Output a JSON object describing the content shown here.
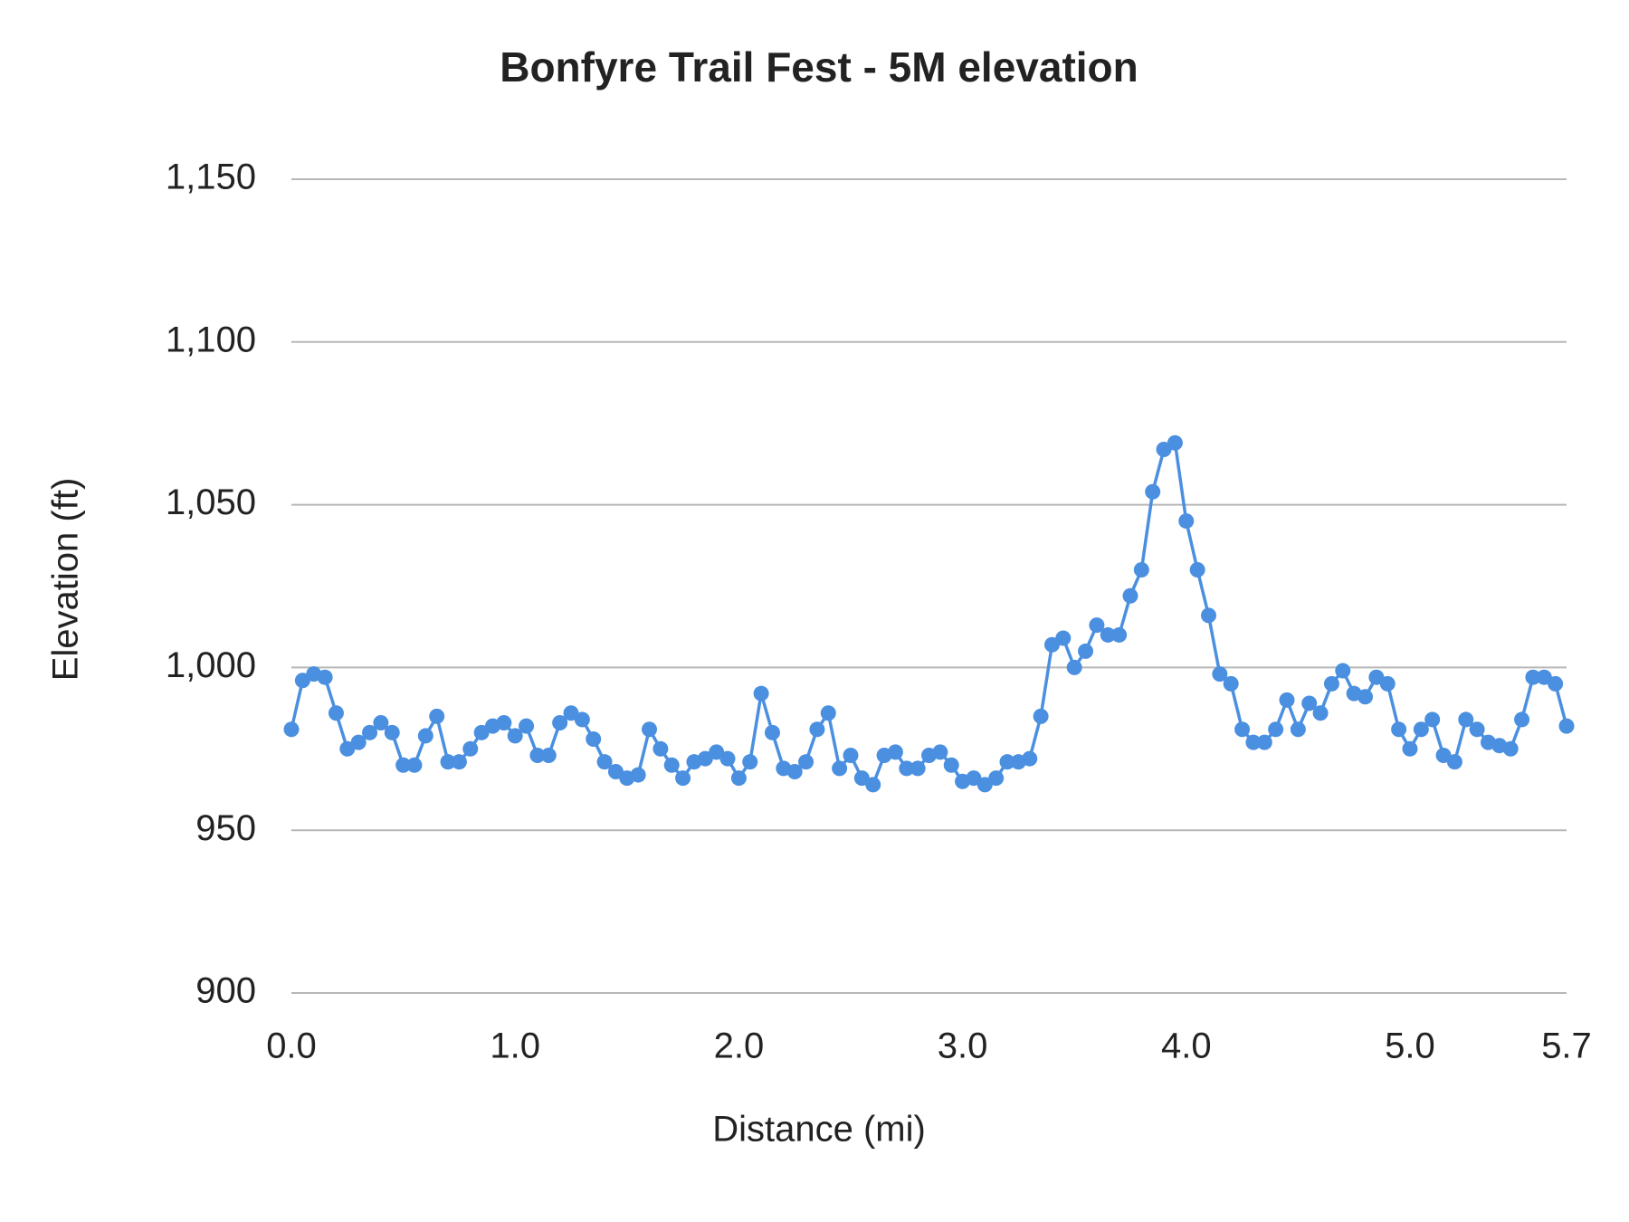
{
  "chart_data": {
    "type": "line",
    "title": "Bonfyre Trail Fest - 5M elevation",
    "x_label": "Distance (mi)",
    "y_label": "Elevation (ft)",
    "xlim": [
      0,
      5.7
    ],
    "xticks": [
      {
        "value": 0,
        "label": "0.0"
      },
      {
        "value": 1,
        "label": "1.0"
      },
      {
        "value": 2,
        "label": "2.0"
      },
      {
        "value": 3,
        "label": "3.0"
      },
      {
        "value": 4,
        "label": "4.0"
      },
      {
        "value": 5,
        "label": "5.0"
      },
      5.7
    ],
    "ylim": [
      900,
      1150
    ],
    "yticks": [
      900,
      950,
      {
        "value": 1000,
        "label": "1,000"
      },
      {
        "value": 1050,
        "label": "1,050"
      },
      {
        "value": 1100,
        "label": "1,100"
      },
      {
        "value": 1150,
        "label": "1,150"
      }
    ],
    "grid": true,
    "x": [
      0,
      0.05,
      0.1,
      0.15,
      0.2,
      0.25,
      0.3,
      0.35,
      0.4,
      0.45,
      0.5,
      0.55,
      0.6,
      0.65,
      0.7,
      0.75,
      0.8,
      0.85,
      0.9,
      0.95,
      1,
      1.05,
      1.1,
      1.15,
      1.2,
      1.25,
      1.3,
      1.35,
      1.4,
      1.45,
      1.5,
      1.55,
      1.6,
      1.65,
      1.7,
      1.75,
      1.8,
      1.85,
      1.9,
      1.95,
      2,
      2.05,
      2.1,
      2.15,
      2.2,
      2.25,
      2.3,
      2.35,
      2.4,
      2.45,
      2.5,
      2.55,
      2.6,
      2.65,
      2.7,
      2.75,
      2.8,
      2.85,
      2.9,
      2.95,
      3,
      3.05,
      3.1,
      3.15,
      3.2,
      3.25,
      3.3,
      3.35,
      3.4,
      3.45,
      3.5,
      3.55,
      3.6,
      3.65,
      3.7,
      3.75,
      3.8,
      3.85,
      3.9,
      3.95,
      4,
      4.05,
      4.1,
      4.15,
      4.2,
      4.25,
      4.3,
      4.35,
      4.4,
      4.45,
      4.5,
      4.55,
      4.6,
      4.65,
      4.7,
      4.75,
      4.8,
      4.85,
      4.9,
      4.95,
      5,
      5.05,
      5.1,
      5.15,
      5.2,
      5.25,
      5.3,
      5.35,
      5.4,
      5.45,
      5.5,
      5.55,
      5.6,
      5.65,
      5.7
    ],
    "series": [
      {
        "name": "Elevation",
        "color": "#4a8fe0",
        "values": [
          981,
          996,
          998,
          997,
          986,
          975,
          977,
          980,
          983,
          980,
          970,
          970,
          979,
          985,
          971,
          971,
          975,
          980,
          982,
          983,
          979,
          982,
          973,
          973,
          983,
          986,
          984,
          978,
          971,
          968,
          966,
          967,
          981,
          975,
          970,
          966,
          971,
          972,
          974,
          972,
          966,
          971,
          992,
          980,
          969,
          968,
          971,
          981,
          986,
          969,
          973,
          966,
          964,
          973,
          974,
          969,
          969,
          973,
          974,
          970,
          965,
          966,
          964,
          966,
          971,
          971,
          972,
          985,
          1007,
          1009,
          1000,
          1005,
          1013,
          1010,
          1010,
          1022,
          1030,
          1054,
          1067,
          1069,
          1045,
          1030,
          1016,
          998,
          995,
          981,
          977,
          977,
          981,
          990,
          981,
          989,
          986,
          995,
          999,
          992,
          991,
          997,
          995,
          981,
          975,
          981,
          984,
          973,
          971,
          984,
          981,
          977,
          976,
          975,
          984,
          997,
          997,
          995,
          982
        ]
      }
    ]
  }
}
